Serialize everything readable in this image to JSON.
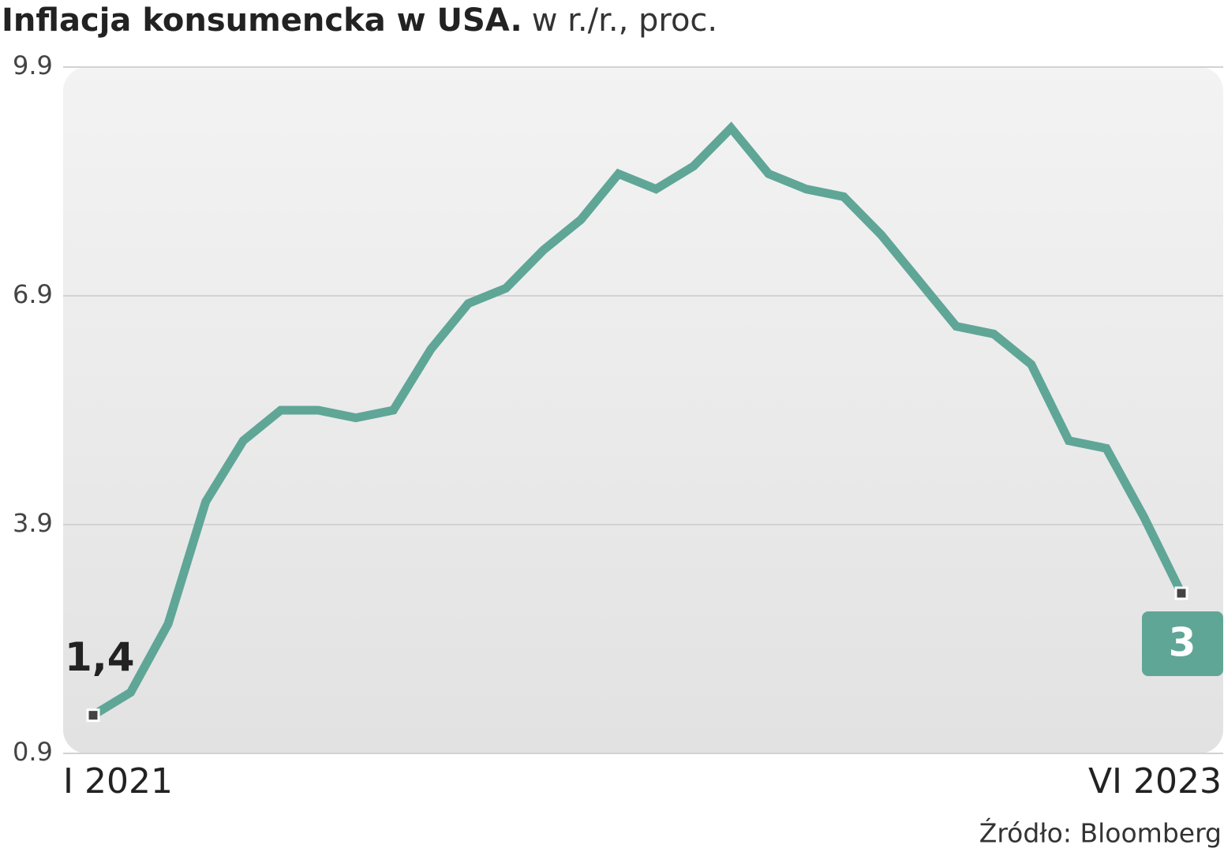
{
  "chart_data": {
    "type": "line",
    "title": "Inflacja konsumencka w USA.",
    "subtitle": "w r./r., proc.",
    "source": "Źródło: Bloomberg",
    "categories": [
      "I 2021",
      null,
      null,
      null,
      null,
      null,
      null,
      null,
      null,
      null,
      null,
      null,
      null,
      null,
      null,
      null,
      null,
      null,
      null,
      null,
      null,
      null,
      null,
      null,
      null,
      null,
      null,
      null,
      null,
      "VI 2023"
    ],
    "values": [
      1.4,
      1.7,
      2.6,
      4.2,
      5.0,
      5.4,
      5.4,
      5.3,
      5.4,
      6.2,
      6.8,
      7.0,
      7.5,
      7.9,
      8.5,
      8.3,
      8.6,
      9.1,
      8.5,
      8.3,
      8.2,
      7.7,
      7.1,
      6.5,
      6.4,
      6.0,
      5.0,
      4.9,
      4.0,
      3.0
    ],
    "value_labels": [
      "1,4",
      null,
      null,
      null,
      null,
      null,
      null,
      null,
      null,
      null,
      null,
      null,
      null,
      null,
      null,
      null,
      null,
      null,
      null,
      null,
      null,
      null,
      null,
      null,
      null,
      null,
      null,
      null,
      null,
      "3"
    ],
    "color": "#5fa697",
    "ylim": [
      0.9,
      9.9
    ],
    "yticks": [
      0.9,
      3.9,
      6.9,
      9.9
    ],
    "grid": true
  }
}
